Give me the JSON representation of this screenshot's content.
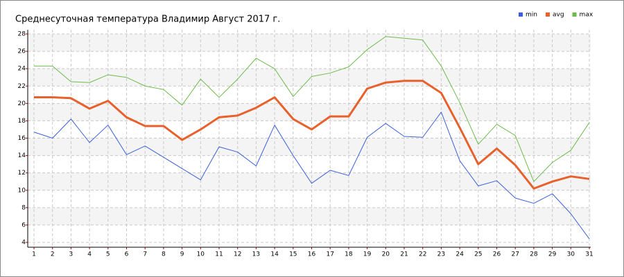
{
  "chart_data": {
    "type": "line",
    "title": "Среднесуточная температура Владимир  Август 2017 г.",
    "x": [
      1,
      2,
      3,
      4,
      5,
      6,
      7,
      8,
      9,
      10,
      11,
      12,
      13,
      14,
      15,
      16,
      17,
      18,
      19,
      20,
      21,
      22,
      23,
      24,
      25,
      26,
      27,
      28,
      29,
      30,
      31
    ],
    "xlim": [
      1,
      31
    ],
    "xticks": [
      1,
      2,
      3,
      4,
      5,
      6,
      7,
      8,
      9,
      10,
      11,
      12,
      13,
      14,
      15,
      16,
      17,
      18,
      19,
      20,
      21,
      22,
      23,
      24,
      25,
      26,
      27,
      28,
      29,
      30,
      31
    ],
    "ylim": [
      4,
      28
    ],
    "yticks": [
      4,
      6,
      8,
      10,
      12,
      14,
      16,
      18,
      20,
      22,
      24,
      26,
      28
    ],
    "grid": true,
    "series": [
      {
        "name": "min",
        "color": "#3a5fd9",
        "values": [
          16.7,
          16.0,
          18.2,
          15.5,
          17.5,
          14.1,
          15.1,
          13.8,
          12.5,
          11.2,
          15.0,
          14.4,
          12.8,
          17.5,
          14.0,
          10.8,
          12.3,
          11.7,
          16.1,
          17.7,
          16.2,
          16.1,
          19.0,
          13.4,
          10.5,
          11.1,
          9.1,
          8.5,
          9.6,
          7.3,
          4.4
        ]
      },
      {
        "name": "avg",
        "color": "#e8602c",
        "values": [
          20.7,
          20.7,
          20.6,
          19.4,
          20.3,
          18.4,
          17.4,
          17.4,
          15.8,
          17.0,
          18.4,
          18.6,
          19.5,
          20.7,
          18.2,
          17.0,
          18.5,
          18.5,
          21.7,
          22.4,
          22.6,
          22.6,
          21.2,
          17.2,
          13.0,
          14.8,
          12.9,
          10.2,
          11.0,
          11.6,
          11.3
        ]
      },
      {
        "name": "max",
        "color": "#6dbb4a",
        "values": [
          24.3,
          24.3,
          22.5,
          22.4,
          23.3,
          23.0,
          22.0,
          21.6,
          19.8,
          22.8,
          20.7,
          22.8,
          25.2,
          24.0,
          20.8,
          23.1,
          23.5,
          24.2,
          26.2,
          27.7,
          27.5,
          27.3,
          24.3,
          20.1,
          15.3,
          17.6,
          16.3,
          11.0,
          13.2,
          14.6,
          17.8
        ]
      }
    ]
  }
}
